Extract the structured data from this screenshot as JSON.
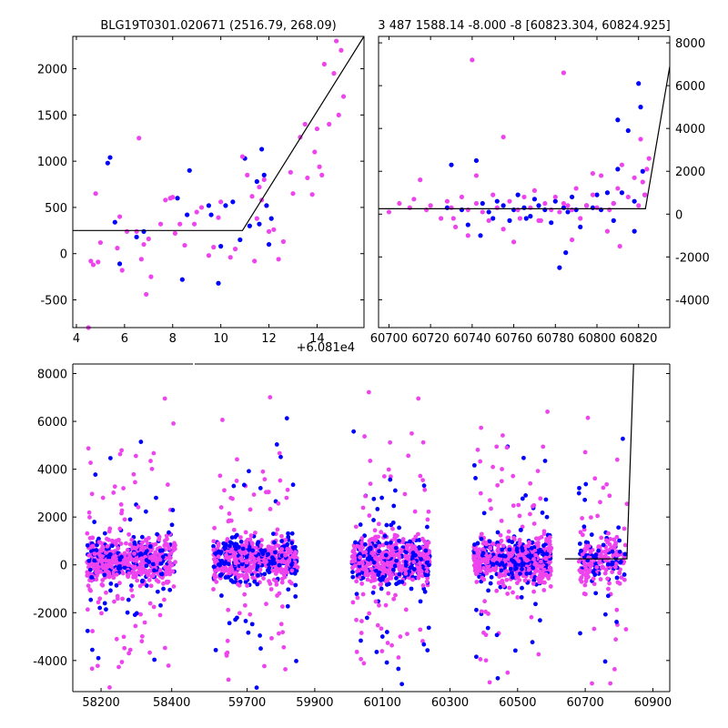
{
  "chart_data": [
    {
      "type": "scatter",
      "title": "BLG19T0301.020671 (2516.79, 268.09)",
      "xlabel": "",
      "ylabel": "",
      "xlim": [
        3.85,
        15.95
      ],
      "ylim": [
        -800,
        2350
      ],
      "xticks": [
        "4",
        "6",
        "8",
        "10",
        "12",
        "14"
      ],
      "yticks": [
        "-500",
        "0",
        "500",
        "1000",
        "1500",
        "2000"
      ],
      "xtick_values": [
        4,
        6,
        8,
        10,
        12,
        14
      ],
      "ytick_values": [
        -500,
        0,
        500,
        1000,
        1500,
        2000
      ],
      "y_axis_side": "left",
      "grid": false,
      "colors": {
        "blue": "#0000ff",
        "pink": "#ee44ee",
        "model": "#000000"
      },
      "model": {
        "x": [
          3.85,
          10.9,
          15.95
        ],
        "y": [
          250,
          250,
          2350
        ]
      },
      "series": [
        {
          "color": "blue",
          "x": [
            5.3,
            5.4,
            5.6,
            5.8,
            6.5,
            6.8,
            8.2,
            8.4,
            8.6,
            8.7,
            9.5,
            9.6,
            9.9,
            10.0,
            10.2,
            10.5,
            10.8,
            11.0,
            11.2,
            11.5,
            11.6,
            11.7,
            11.8,
            11.9,
            12.0,
            12.1
          ],
          "y": [
            980,
            1040,
            340,
            -110,
            180,
            240,
            600,
            -280,
            420,
            900,
            520,
            420,
            -320,
            80,
            520,
            560,
            150,
            1030,
            300,
            780,
            320,
            1130,
            850,
            520,
            100,
            380
          ]
        },
        {
          "color": "pink",
          "x": [
            4.6,
            4.7,
            4.8,
            4.9,
            5.0,
            5.7,
            5.8,
            5.9,
            6.1,
            6.5,
            6.7,
            6.9,
            7.0,
            7.1,
            7.5,
            7.7,
            7.9,
            8.0,
            8.1,
            8.3,
            8.5,
            8.9,
            9.0,
            9.2,
            9.5,
            9.7,
            9.9,
            10.0,
            10.4,
            10.6,
            10.9,
            11.1,
            11.3,
            11.5,
            11.6,
            11.7,
            11.8,
            12.0,
            12.2,
            12.6,
            12.9,
            13.0,
            13.3,
            13.5,
            13.6,
            13.8,
            14.0,
            14.1,
            14.2,
            14.3,
            14.5,
            14.7,
            14.8,
            14.9,
            15.0,
            15.1,
            6.6,
            4.5,
            6.8,
            11.4,
            12.4,
            13.9
          ],
          "y": [
            -80,
            -120,
            650,
            -90,
            120,
            60,
            400,
            -180,
            240,
            240,
            -60,
            -440,
            160,
            -250,
            320,
            580,
            600,
            610,
            220,
            320,
            90,
            320,
            450,
            500,
            -20,
            70,
            390,
            560,
            -40,
            50,
            1050,
            850,
            620,
            380,
            720,
            580,
            800,
            240,
            260,
            130,
            880,
            650,
            1260,
            1400,
            820,
            640,
            1350,
            940,
            850,
            2050,
            1400,
            1950,
            2300,
            1500,
            2200,
            1700,
            1250,
            -800,
            100,
            -80,
            -60,
            1100
          ]
        }
      ]
    },
    {
      "type": "scatter",
      "title": "3 487 1588.14 -8.000 -8 [60823.304, 60824.925]",
      "xlabel": "",
      "ylabel": "",
      "offset_label": "+6.081e4",
      "xlim": [
        60695,
        60835
      ],
      "ylim": [
        -5300,
        8300
      ],
      "xticks": [
        "60700",
        "60720",
        "60740",
        "60760",
        "60780",
        "60800",
        "60820"
      ],
      "yticks": [
        "-4000",
        "-2000",
        "0",
        "2000",
        "4000",
        "6000",
        "8000"
      ],
      "xtick_values": [
        60700,
        60720,
        60740,
        60760,
        60780,
        60800,
        60820
      ],
      "ytick_values": [
        -4000,
        -2000,
        0,
        2000,
        4000,
        6000,
        8000
      ],
      "y_axis_side": "right",
      "grid": false,
      "model": {
        "x": [
          60695,
          60823.3,
          60835
        ],
        "y": [
          250,
          250,
          6900
        ]
      },
      "series": [
        {
          "color": "blue",
          "x": [
            60728,
            60730,
            60735,
            60738,
            60742,
            60745,
            60748,
            60750,
            60752,
            60755,
            60758,
            60760,
            60762,
            60765,
            60768,
            60770,
            60772,
            60775,
            60778,
            60780,
            60782,
            60784,
            60786,
            60788,
            60790,
            60792,
            60795,
            60798,
            60800,
            60802,
            60805,
            60808,
            60810,
            60812,
            60815,
            60818,
            60820,
            60821,
            60822,
            60823,
            60818,
            60810,
            60808,
            60785,
            60744,
            60766
          ],
          "y": [
            300,
            2300,
            200,
            -500,
            2500,
            500,
            100,
            -200,
            600,
            400,
            -300,
            200,
            900,
            300,
            -100,
            700,
            400,
            200,
            -400,
            600,
            -2500,
            300,
            100,
            800,
            200,
            -600,
            400,
            300,
            900,
            200,
            1000,
            -300,
            4400,
            1000,
            3900,
            600,
            6100,
            5000,
            2000,
            900,
            -800,
            2100,
            500,
            -1800,
            -1000,
            -200
          ]
        },
        {
          "color": "pink",
          "x": [
            60700,
            60705,
            60710,
            60712,
            60715,
            60718,
            60720,
            60725,
            60728,
            60730,
            60732,
            60735,
            60738,
            60740,
            60742,
            60745,
            60748,
            60750,
            60752,
            60755,
            60758,
            60760,
            60762,
            60765,
            60768,
            60770,
            60772,
            60775,
            60778,
            60780,
            60782,
            60784,
            60786,
            60788,
            60790,
            60792,
            60795,
            60798,
            60800,
            60802,
            60805,
            60808,
            60810,
            60812,
            60815,
            60818,
            60820,
            60821,
            60822,
            60823,
            60824,
            60825,
            60738,
            60763,
            60784,
            60755,
            60788,
            60798,
            60806,
            60811,
            60773,
            60742,
            60731
          ],
          "y": [
            100,
            500,
            300,
            700,
            1600,
            200,
            400,
            -200,
            600,
            300,
            -600,
            800,
            200,
            7200,
            500,
            100,
            -300,
            900,
            300,
            3600,
            600,
            -1300,
            200,
            800,
            300,
            1100,
            -300,
            500,
            200,
            800,
            100,
            6600,
            400,
            200,
            1200,
            -200,
            400,
            900,
            300,
            1800,
            -800,
            500,
            1200,
            2300,
            800,
            1700,
            400,
            3500,
            1500,
            900,
            2100,
            2600,
            -1000,
            -200,
            500,
            -700,
            -1200,
            1900,
            200,
            -1500,
            -300,
            1800,
            -200
          ]
        }
      ]
    },
    {
      "type": "scatter",
      "title": "",
      "xlabel": "",
      "ylabel": "",
      "ylim": [
        -5300,
        8400
      ],
      "yticks": [
        "-4000",
        "-2000",
        "0",
        "2000",
        "4000",
        "6000",
        "8000"
      ],
      "ytick_values": [
        -4000,
        -2000,
        0,
        2000,
        4000,
        6000,
        8000
      ],
      "y_axis_side": "left",
      "grid": false,
      "xticks": [
        "58200",
        "58400",
        "59700",
        "59900",
        "60100",
        "60300",
        "60500",
        "60700",
        "60900"
      ],
      "seasons": [
        {
          "start": 58160,
          "end": 58410
        },
        {
          "start": 59600,
          "end": 59850
        },
        {
          "start": 60010,
          "end": 60240
        },
        {
          "start": 60370,
          "end": 60600
        },
        {
          "start": 60680,
          "end": 60825
        }
      ],
      "model": {
        "x": [
          60640,
          60823.3,
          60843
        ],
        "y": [
          250,
          250,
          8400
        ]
      }
    }
  ]
}
